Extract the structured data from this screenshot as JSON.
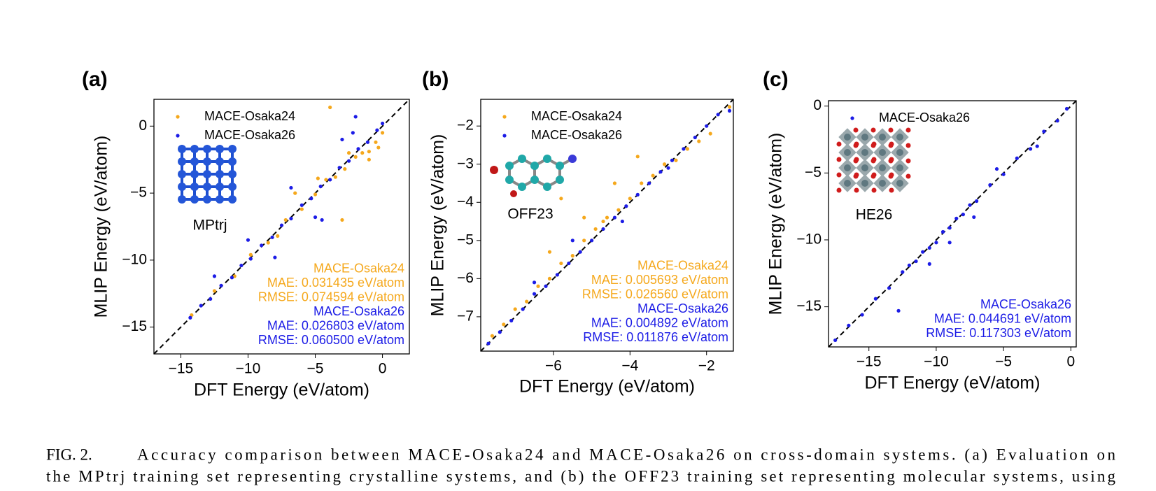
{
  "chart_data": [
    {
      "type": "scatter",
      "panel_label": "(a)",
      "x_label": "DFT Energy (eV/atom)",
      "y_label": "MLIP Energy (eV/atom)",
      "inset_label": "MPtrj",
      "xlim": [
        -17,
        2
      ],
      "ylim": [
        -17,
        2
      ],
      "xticks": [
        {
          "value": -15,
          "label": "−15"
        },
        {
          "value": -10,
          "label": "−10"
        },
        {
          "value": -5,
          "label": "−5"
        },
        0
      ],
      "yticks": [
        {
          "value": -15,
          "label": "−15"
        },
        {
          "value": -10,
          "label": "−10"
        },
        {
          "value": -5,
          "label": "−5"
        },
        0
      ],
      "legend": "upper left",
      "series": [
        {
          "name": "MACE-Osaka24",
          "color": "#f5a81c",
          "x": [
            -14.2,
            -12.5,
            -11,
            -9.8,
            -8.5,
            -7.2,
            -6,
            -5,
            -4.2,
            -3.5,
            -2.8,
            -2,
            -1.5,
            -1,
            -0.5,
            -0.3,
            -3.9,
            -6.5,
            -3,
            -1,
            -2.5,
            -7.8,
            -4.8,
            0
          ],
          "values": [
            -14.1,
            -12.3,
            -11.2,
            -9.6,
            -8.7,
            -7.0,
            -6.2,
            -5.1,
            -4.0,
            -3.8,
            -3.2,
            -2.3,
            -2.0,
            -1.9,
            -1.2,
            -1.6,
            1.4,
            -5.0,
            -7.0,
            -2.5,
            -2.0,
            -8.2,
            -3.9,
            -0.5
          ]
        },
        {
          "name": "MACE-Osaka26",
          "color": "#1c1ce6",
          "x": [
            -14.3,
            -13.5,
            -12.8,
            -12,
            -11.2,
            -10.5,
            -9.8,
            -9,
            -8.2,
            -7.5,
            -6.8,
            -6,
            -5.3,
            -4.6,
            -3.9,
            -3.2,
            -2.5,
            -1.8,
            -1.1,
            -0.4,
            0,
            -10,
            -8,
            -5,
            -3,
            -2,
            -12.5,
            -6.8,
            -4.5,
            -2.2
          ],
          "values": [
            -14.3,
            -13.4,
            -12.9,
            -11.9,
            -11.3,
            -10.4,
            -9.9,
            -8.9,
            -8.3,
            -7.4,
            -6.9,
            -5.9,
            -5.4,
            -4.5,
            -4.0,
            -3.1,
            -2.6,
            -1.7,
            -1.2,
            -0.3,
            0.2,
            -8.5,
            -9.8,
            -6.8,
            -1.0,
            0.7,
            -11.2,
            -4.6,
            -7.0,
            -0.5
          ]
        }
      ],
      "annotations": [
        {
          "text": "MACE-Osaka24",
          "color": "#f5a81c"
        },
        {
          "text": "MAE: 0.031435 eV/atom",
          "color": "#f5a81c"
        },
        {
          "text": "RMSE: 0.074594 eV/atom",
          "color": "#f5a81c"
        },
        {
          "text": "MACE-Osaka26",
          "color": "#1c1ce6"
        },
        {
          "text": "MAE: 0.026803 eV/atom",
          "color": "#1c1ce6"
        },
        {
          "text": "RMSE: 0.060500 eV/atom",
          "color": "#1c1ce6"
        }
      ]
    },
    {
      "type": "scatter",
      "panel_label": "(b)",
      "x_label": "DFT Energy (eV/atom)",
      "y_label": "MLIP Energy (eV/atom)",
      "inset_label": "OFF23",
      "xlim": [
        -7.9,
        -1.3
      ],
      "ylim": [
        -7.9,
        -1.3
      ],
      "xticks": [
        {
          "value": -6,
          "label": "−6"
        },
        {
          "value": -4,
          "label": "−4"
        },
        {
          "value": -2,
          "label": "−2"
        }
      ],
      "yticks": [
        {
          "value": -7,
          "label": "−7"
        },
        {
          "value": -6,
          "label": "−6"
        },
        {
          "value": -5,
          "label": "−5"
        },
        {
          "value": -4,
          "label": "−4"
        },
        {
          "value": -3,
          "label": "−3"
        },
        {
          "value": -2,
          "label": "−2"
        }
      ],
      "legend": "upper left",
      "series": [
        {
          "name": "MACE-Osaka24",
          "color": "#f5a81c",
          "x": [
            -7.6,
            -7.3,
            -7,
            -6.7,
            -6.4,
            -6.1,
            -5.8,
            -5.5,
            -5.2,
            -4.9,
            -4.6,
            -4.3,
            -4,
            -3.7,
            -3.4,
            -3.1,
            -2.8,
            -2.5,
            -2.2,
            -1.9,
            -1.4,
            -6.1,
            -5.2,
            -4.4,
            -3.8,
            -4.7,
            -5.8
          ],
          "values": [
            -7.5,
            -7.2,
            -6.8,
            -6.6,
            -6.2,
            -6.0,
            -5.6,
            -5.4,
            -5.0,
            -4.7,
            -4.4,
            -4.2,
            -3.9,
            -3.5,
            -3.3,
            -3.0,
            -2.9,
            -2.6,
            -2.4,
            -2.2,
            -1.5,
            -5.3,
            -4.4,
            -3.5,
            -2.8,
            -4.5,
            -3.9
          ]
        },
        {
          "name": "MACE-Osaka26",
          "color": "#1c1ce6",
          "x": [
            -7.7,
            -7.4,
            -7.1,
            -6.8,
            -6.5,
            -6.2,
            -5.9,
            -5.6,
            -5.3,
            -5,
            -4.7,
            -4.4,
            -4.1,
            -3.8,
            -3.5,
            -3.2,
            -2.9,
            -2.6,
            -2.3,
            -2,
            -1.7,
            -1.4,
            -5.5,
            -4.2,
            -6.5,
            -3
          ],
          "values": [
            -7.7,
            -7.4,
            -7.1,
            -6.8,
            -6.4,
            -6.2,
            -5.9,
            -5.6,
            -5.3,
            -5.0,
            -4.7,
            -4.4,
            -4.1,
            -3.8,
            -3.5,
            -3.2,
            -2.9,
            -2.6,
            -2.3,
            -2.0,
            -1.7,
            -1.6,
            -5.0,
            -4.5,
            -6.1,
            -3.1
          ]
        }
      ],
      "annotations": [
        {
          "text": "MACE-Osaka24",
          "color": "#f5a81c"
        },
        {
          "text": "MAE: 0.005693 eV/atom",
          "color": "#f5a81c"
        },
        {
          "text": "RMSE: 0.026560 eV/atom",
          "color": "#f5a81c"
        },
        {
          "text": "MACE-Osaka26",
          "color": "#1c1ce6"
        },
        {
          "text": "MAE: 0.004892 eV/atom",
          "color": "#1c1ce6"
        },
        {
          "text": "RMSE: 0.011876 eV/atom",
          "color": "#1c1ce6"
        }
      ]
    },
    {
      "type": "scatter",
      "panel_label": "(c)",
      "x_label": "DFT Energy (eV/atom)",
      "y_label": "MLIP Energy (eV/atom)",
      "inset_label": "HE26",
      "xlim": [
        -18,
        0.4
      ],
      "ylim": [
        -18,
        0.4
      ],
      "xticks": [
        {
          "value": -15,
          "label": "−15"
        },
        {
          "value": -10,
          "label": "−10"
        },
        {
          "value": -5,
          "label": "−5"
        },
        0
      ],
      "yticks": [
        {
          "value": -15,
          "label": "−15"
        },
        {
          "value": -10,
          "label": "−10"
        },
        {
          "value": -5,
          "label": "−5"
        },
        0
      ],
      "legend": "upper left",
      "series": [
        {
          "name": "MACE-Osaka26",
          "color": "#1c1ce6",
          "x": [
            -17.5,
            -16.5,
            -15.5,
            -14.5,
            -13.5,
            -12.5,
            -12,
            -11.5,
            -11,
            -10.5,
            -10,
            -9.5,
            -9,
            -8.5,
            -8,
            -7.5,
            -7,
            -6,
            -5,
            -4,
            -3,
            -2,
            -1,
            -0.3,
            -12.8,
            -9,
            -5.5,
            -7.2,
            -10.5,
            -2.5
          ],
          "values": [
            -17.5,
            -16.4,
            -15.6,
            -14.4,
            -13.6,
            -12.4,
            -11.9,
            -11.6,
            -10.9,
            -10.6,
            -10.2,
            -9.4,
            -9.1,
            -8.4,
            -8.1,
            -7.4,
            -7.1,
            -5.9,
            -5.1,
            -3.9,
            -3.2,
            -1.9,
            -1.1,
            -0.2,
            -15.3,
            -10.2,
            -4.7,
            -8.3,
            -11.8,
            -3.0
          ]
        }
      ],
      "annotations": [
        {
          "text": "MACE-Osaka26",
          "color": "#1c1ce6"
        },
        {
          "text": "MAE: 0.044691 eV/atom",
          "color": "#1c1ce6"
        },
        {
          "text": "RMSE: 0.117303 eV/atom",
          "color": "#1c1ce6"
        }
      ]
    }
  ],
  "caption": {
    "label": "FIG. 2.",
    "lines": [
      "Accuracy comparison between MACE-Osaka24 and MACE-Osaka26 on cross-domain systems.  (a) Evaluation on",
      "the MPtrj training set representing crystalline systems, and (b) the OFF23 training set representing molecular systems, using"
    ]
  }
}
